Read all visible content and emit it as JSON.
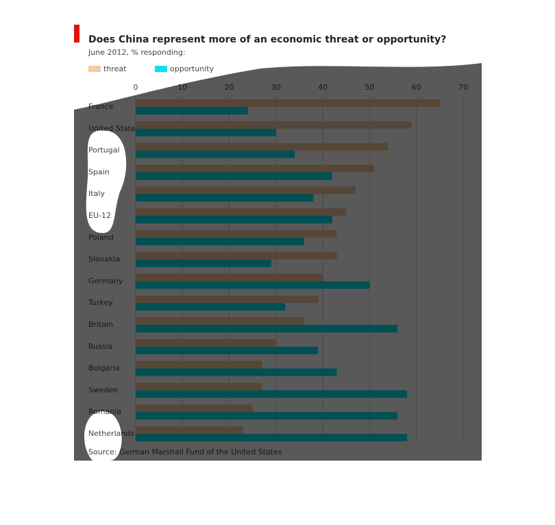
{
  "chart_data": {
    "type": "barh",
    "title": "Does China represent more of an economic threat or opportunity?",
    "subtitle": "June 2012, % responding:",
    "source": "Source: German Marshall Fund of the United States",
    "categories": [
      "France",
      "United States",
      "Portugal",
      "Spain",
      "Italy",
      "EU-12",
      "Poland",
      "Slovakia",
      "Germany",
      "Turkey",
      "Britain",
      "Russia",
      "Bulgaria",
      "Sweden",
      "Romania",
      "Netherlands"
    ],
    "series": [
      {
        "name": "threat",
        "color": "#f7c9a0",
        "values": [
          65,
          59,
          54,
          51,
          47,
          45,
          43,
          43,
          40,
          39,
          36,
          30,
          27,
          27,
          25,
          23
        ]
      },
      {
        "name": "opportunity",
        "color": "#00e5f0",
        "values": [
          24,
          30,
          34,
          42,
          38,
          42,
          36,
          29,
          50,
          32,
          56,
          39,
          43,
          58,
          56,
          58
        ]
      }
    ],
    "xlim": [
      0,
      70
    ],
    "xticks": [
      0,
      10,
      20,
      30,
      40,
      50,
      60,
      70
    ],
    "grid": true
  }
}
